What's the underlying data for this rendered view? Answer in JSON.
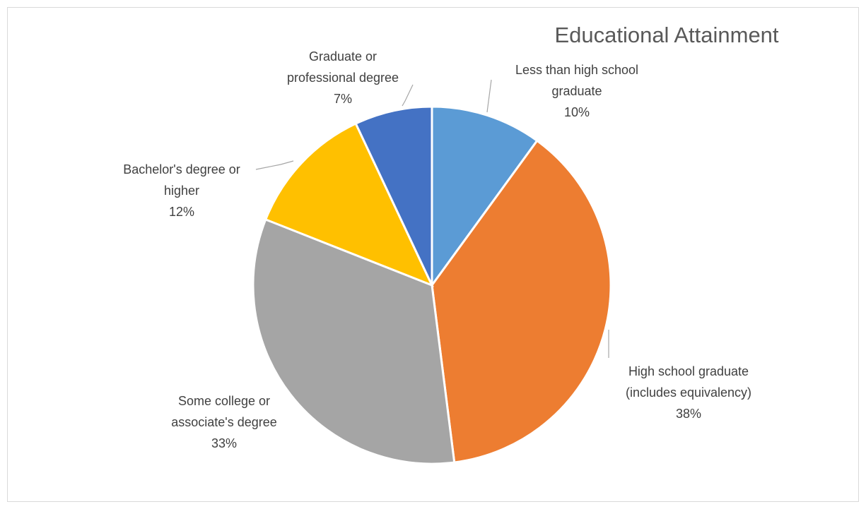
{
  "chart_data": {
    "type": "pie",
    "title": "Educational Attainment",
    "legend": "none",
    "slices": [
      {
        "label_lines": [
          "Less than high school",
          "graduate"
        ],
        "percent_label": "10%",
        "value": 10,
        "color": "#5b9bd5"
      },
      {
        "label_lines": [
          "High school graduate",
          "(includes equivalency)"
        ],
        "percent_label": "38%",
        "value": 38,
        "color": "#ed7d31"
      },
      {
        "label_lines": [
          "Some college or",
          "associate's degree"
        ],
        "percent_label": "33%",
        "value": 33,
        "color": "#a5a5a5"
      },
      {
        "label_lines": [
          "Bachelor's degree or",
          "higher"
        ],
        "percent_label": "12%",
        "value": 12,
        "color": "#ffc000"
      },
      {
        "label_lines": [
          "Graduate or",
          "professional degree"
        ],
        "percent_label": "7%",
        "value": 7,
        "color": "#4472c4"
      }
    ]
  }
}
